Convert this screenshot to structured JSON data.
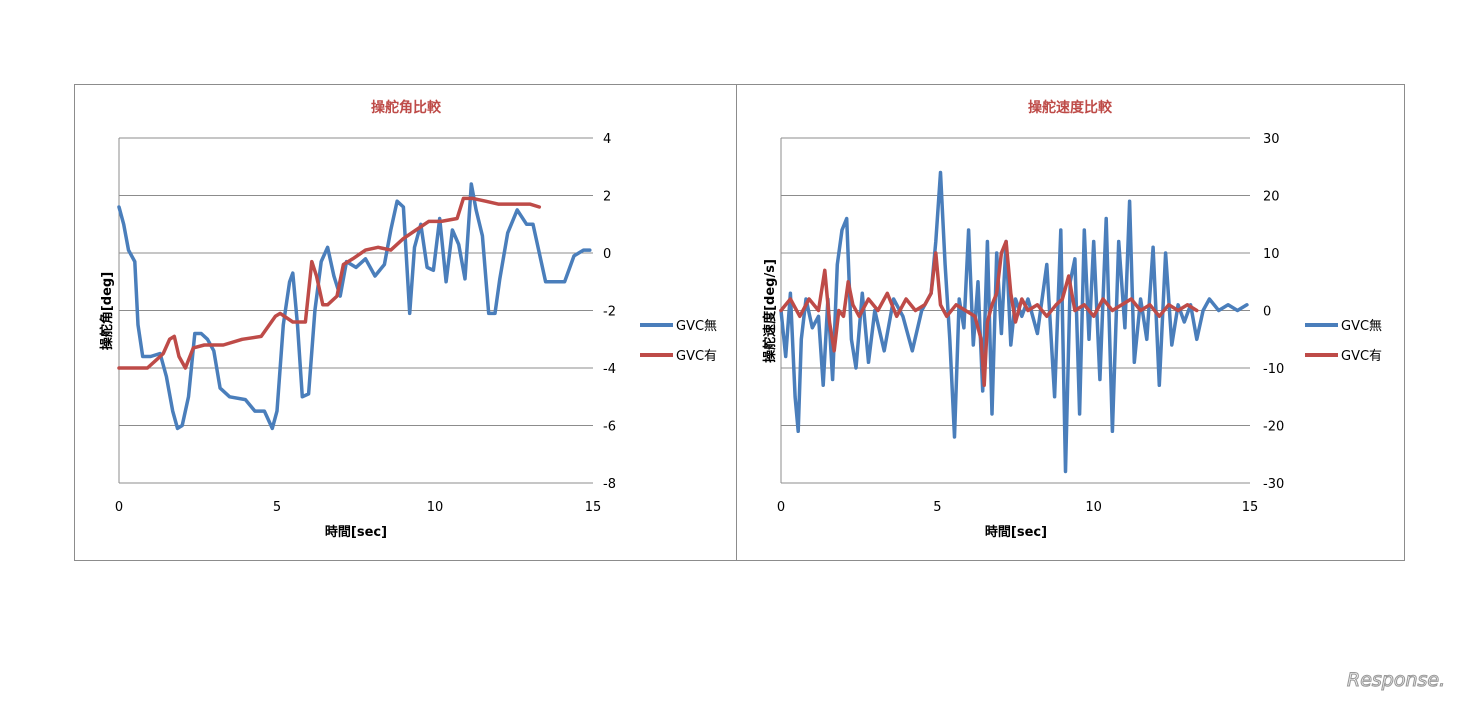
{
  "chart_data": [
    {
      "type": "line",
      "title": "操舵角比較",
      "xlabel": "時間[sec]",
      "ylabel": "操舵角[deg]",
      "xlim": [
        0,
        15
      ],
      "ylim": [
        -8,
        4
      ],
      "xticks": [
        0,
        5,
        10,
        15
      ],
      "yticks": [
        4,
        2,
        0,
        -2,
        -4,
        -6,
        -8
      ],
      "y_axis_side": "right",
      "grid": "horizontal",
      "legend_position": "right",
      "series": [
        {
          "name": "GVC無",
          "color": "#4a7ebb",
          "x": [
            0,
            0.15,
            0.3,
            0.5,
            0.6,
            0.75,
            1.0,
            1.3,
            1.5,
            1.7,
            1.85,
            2.0,
            2.2,
            2.4,
            2.6,
            2.8,
            3.0,
            3.2,
            3.5,
            4.0,
            4.3,
            4.6,
            4.85,
            5.0,
            5.2,
            5.4,
            5.5,
            5.65,
            5.8,
            6.0,
            6.2,
            6.4,
            6.6,
            6.8,
            7.0,
            7.2,
            7.5,
            7.8,
            8.1,
            8.4,
            8.6,
            8.8,
            9.0,
            9.2,
            9.35,
            9.55,
            9.75,
            9.95,
            10.15,
            10.35,
            10.55,
            10.75,
            10.95,
            11.15,
            11.3,
            11.5,
            11.7,
            11.9,
            12.05,
            12.3,
            12.6,
            12.9,
            13.1,
            13.3,
            13.5,
            13.8,
            14.1,
            14.4,
            14.7,
            14.9
          ],
          "y": [
            1.6,
            1.0,
            0.1,
            -0.3,
            -2.5,
            -3.6,
            -3.6,
            -3.5,
            -4.3,
            -5.5,
            -6.1,
            -6.0,
            -5.0,
            -2.8,
            -2.8,
            -3.0,
            -3.4,
            -4.7,
            -5.0,
            -5.1,
            -5.5,
            -5.5,
            -6.1,
            -5.5,
            -2.5,
            -1.0,
            -0.7,
            -2.5,
            -5.0,
            -4.9,
            -2.0,
            -0.3,
            0.2,
            -0.8,
            -1.5,
            -0.3,
            -0.5,
            -0.2,
            -0.8,
            -0.4,
            0.8,
            1.8,
            1.6,
            -2.1,
            0.2,
            1.0,
            -0.5,
            -0.6,
            1.2,
            -1.0,
            0.8,
            0.3,
            -0.9,
            2.4,
            1.5,
            0.6,
            -2.1,
            -2.1,
            -0.9,
            0.7,
            1.5,
            1.0,
            1.0,
            0.0,
            -1.0,
            -1.0,
            -1.0,
            -0.1,
            0.1,
            0.1
          ]
        },
        {
          "name": "GVC有",
          "color": "#be4b48",
          "x": [
            0,
            0.9,
            1.2,
            1.4,
            1.6,
            1.75,
            1.9,
            2.1,
            2.35,
            2.7,
            3.3,
            3.9,
            4.5,
            4.95,
            5.1,
            5.5,
            5.9,
            6.1,
            6.25,
            6.45,
            6.6,
            6.9,
            7.1,
            7.4,
            7.8,
            8.2,
            8.6,
            9.0,
            9.4,
            9.8,
            10.2,
            10.7,
            10.9,
            11.2,
            11.6,
            12.0,
            12.5,
            13.0,
            13.3
          ],
          "y": [
            -4.0,
            -4.0,
            -3.7,
            -3.5,
            -3.0,
            -2.9,
            -3.6,
            -4.0,
            -3.3,
            -3.2,
            -3.2,
            -3.0,
            -2.9,
            -2.2,
            -2.1,
            -2.4,
            -2.4,
            -0.3,
            -0.8,
            -1.8,
            -1.8,
            -1.5,
            -0.4,
            -0.2,
            0.1,
            0.2,
            0.1,
            0.5,
            0.8,
            1.1,
            1.1,
            1.2,
            1.9,
            1.9,
            1.8,
            1.7,
            1.7,
            1.7,
            1.6
          ]
        }
      ]
    },
    {
      "type": "line",
      "title": "操舵速度比較",
      "xlabel": "時間[sec]",
      "ylabel": "操舵速度[deg/s]",
      "xlim": [
        0,
        15
      ],
      "ylim": [
        -30,
        30
      ],
      "xticks": [
        0,
        5,
        10,
        15
      ],
      "yticks": [
        30,
        20,
        10,
        0,
        -10,
        -20,
        -30
      ],
      "y_axis_side": "right",
      "grid": "horizontal",
      "legend_position": "right",
      "series": [
        {
          "name": "GVC無",
          "color": "#4a7ebb",
          "x": [
            0,
            0.15,
            0.3,
            0.45,
            0.55,
            0.65,
            0.8,
            1.0,
            1.2,
            1.35,
            1.5,
            1.65,
            1.8,
            1.95,
            2.1,
            2.25,
            2.4,
            2.6,
            2.8,
            3.0,
            3.3,
            3.6,
            3.9,
            4.2,
            4.5,
            4.8,
            4.95,
            5.1,
            5.25,
            5.4,
            5.55,
            5.7,
            5.85,
            6.0,
            6.15,
            6.3,
            6.45,
            6.6,
            6.75,
            6.9,
            7.05,
            7.2,
            7.35,
            7.5,
            7.7,
            7.9,
            8.2,
            8.5,
            8.75,
            8.95,
            9.1,
            9.25,
            9.4,
            9.55,
            9.7,
            9.85,
            10.0,
            10.2,
            10.4,
            10.6,
            10.8,
            11.0,
            11.15,
            11.3,
            11.5,
            11.7,
            11.9,
            12.1,
            12.3,
            12.5,
            12.7,
            12.9,
            13.1,
            13.3,
            13.5,
            13.7,
            14.0,
            14.3,
            14.6,
            14.9
          ],
          "y": [
            0,
            -8,
            3,
            -15,
            -21,
            -5,
            2,
            -3,
            -1,
            -13,
            2,
            -12,
            8,
            14,
            16,
            -5,
            -10,
            3,
            -9,
            0,
            -7,
            2,
            -1,
            -7,
            0,
            3,
            12,
            24,
            8,
            -5,
            -22,
            2,
            -3,
            14,
            -6,
            5,
            -14,
            12,
            -18,
            10,
            -4,
            12,
            -6,
            2,
            -1,
            2,
            -4,
            8,
            -15,
            14,
            -28,
            5,
            9,
            -18,
            14,
            -5,
            12,
            -12,
            16,
            -21,
            12,
            -3,
            19,
            -9,
            2,
            -5,
            11,
            -13,
            10,
            -6,
            1,
            -2,
            1,
            -5,
            0,
            2,
            0,
            1,
            0,
            1
          ]
        },
        {
          "name": "GVC有",
          "color": "#be4b48",
          "x": [
            0,
            0.3,
            0.6,
            0.9,
            1.2,
            1.4,
            1.55,
            1.7,
            1.85,
            2.0,
            2.15,
            2.3,
            2.5,
            2.8,
            3.1,
            3.4,
            3.7,
            4.0,
            4.3,
            4.6,
            4.8,
            4.95,
            5.1,
            5.3,
            5.6,
            5.9,
            6.2,
            6.4,
            6.5,
            6.6,
            6.75,
            6.9,
            7.05,
            7.2,
            7.35,
            7.5,
            7.7,
            7.9,
            8.2,
            8.5,
            8.8,
            9.0,
            9.2,
            9.4,
            9.7,
            10.0,
            10.3,
            10.6,
            10.9,
            11.2,
            11.5,
            11.8,
            12.1,
            12.4,
            12.7,
            13.0,
            13.3
          ],
          "y": [
            0,
            2,
            -1,
            2,
            0,
            7,
            -2,
            -7,
            0,
            -1,
            5,
            1,
            -1,
            2,
            0,
            3,
            -1,
            2,
            0,
            1,
            3,
            10,
            1,
            -1,
            1,
            0,
            -1,
            -5,
            -13,
            -2,
            1,
            3,
            10,
            12,
            3,
            -2,
            2,
            0,
            1,
            -1,
            1,
            2,
            6,
            0,
            1,
            -1,
            2,
            0,
            1,
            2,
            0,
            1,
            -1,
            1,
            0,
            1,
            0
          ]
        }
      ]
    }
  ],
  "watermark": {
    "text": "Response."
  },
  "colors": {
    "title": "#be4b48",
    "grid": "#8c8c8c",
    "frame": "#8c8c8c"
  }
}
